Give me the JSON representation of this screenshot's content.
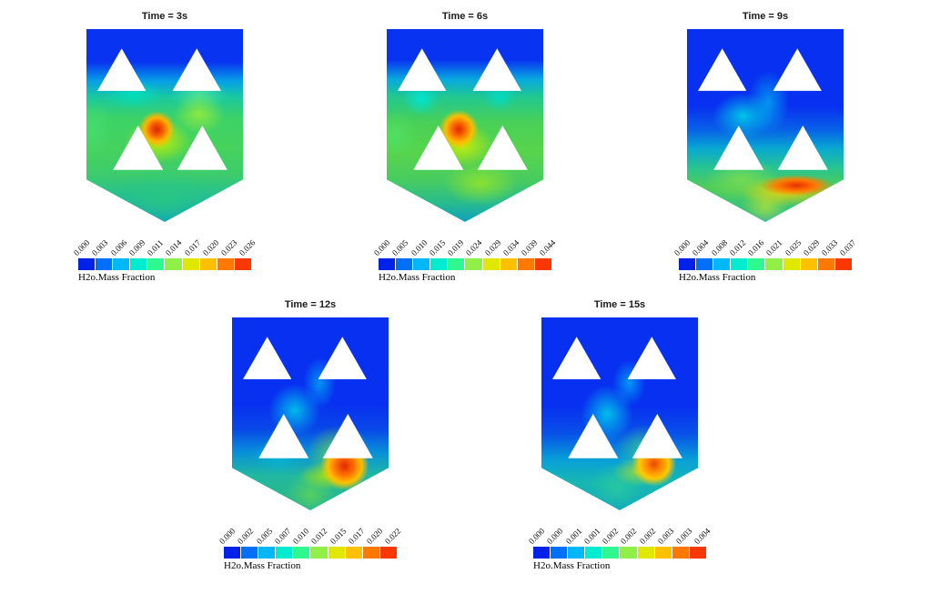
{
  "figure": {
    "colorbar_colors": [
      "#0022e8",
      "#0070f8",
      "#00b8f8",
      "#00ecd0",
      "#30f890",
      "#90f048",
      "#e0e800",
      "#ffc000",
      "#ff7800",
      "#f83800"
    ],
    "panels": [
      {
        "id": "3s",
        "title": "Time = 3s",
        "colorbar_label": "H2o.Mass Fraction",
        "ticks": [
          "0.000",
          "0.003",
          "0.006",
          "0.009",
          "0.011",
          "0.014",
          "0.017",
          "0.020",
          "0.023",
          "0.026"
        ]
      },
      {
        "id": "6s",
        "title": "Time = 6s",
        "colorbar_label": "H2o.Mass Fraction",
        "ticks": [
          "0.000",
          "0.005",
          "0.010",
          "0.015",
          "0.019",
          "0.024",
          "0.029",
          "0.034",
          "0.039",
          "0.044"
        ]
      },
      {
        "id": "9s",
        "title": "Time = 9s",
        "colorbar_label": "H2o.Mass Fraction",
        "ticks": [
          "0.000",
          "0.004",
          "0.008",
          "0.012",
          "0.016",
          "0.021",
          "0.025",
          "0.029",
          "0.033",
          "0.037"
        ]
      },
      {
        "id": "12s",
        "title": "Time = 12s",
        "colorbar_label": "H2o.Mass Fraction",
        "ticks": [
          "0.000",
          "0.002",
          "0.005",
          "0.007",
          "0.010",
          "0.012",
          "0.015",
          "0.017",
          "0.020",
          "0.022"
        ]
      },
      {
        "id": "15s",
        "title": "Time = 15s",
        "colorbar_label": "H2o.Mass Fraction",
        "ticks": [
          "0.000",
          "0.000",
          "0.001",
          "0.001",
          "0.002",
          "0.002",
          "0.002",
          "0.003",
          "0.003",
          "0.004"
        ]
      }
    ]
  },
  "chart_data": [
    {
      "type": "heatmap",
      "title": "Time = 3s",
      "field": "H2O mass fraction contour",
      "colorbar_label": "H2o.Mass Fraction",
      "legend_position": "bottom",
      "colorbar_ticks": [
        0.0,
        0.003,
        0.006,
        0.009,
        0.011,
        0.014,
        0.017,
        0.02,
        0.023,
        0.026
      ],
      "value_range": [
        0.0,
        0.026
      ],
      "colormap": "rainbow blue-to-red",
      "notes": "Pentagon-shaped domain with four white triangular baffles; red maximum spot between middle baffles, green mixing zone in lower half, blue (low) at top."
    },
    {
      "type": "heatmap",
      "title": "Time = 6s",
      "field": "H2O mass fraction contour",
      "colorbar_label": "H2o.Mass Fraction",
      "legend_position": "bottom",
      "colorbar_ticks": [
        0.0,
        0.005,
        0.01,
        0.015,
        0.019,
        0.024,
        0.029,
        0.034,
        0.039,
        0.044
      ],
      "value_range": [
        0.0,
        0.044
      ],
      "colormap": "rainbow blue-to-red",
      "notes": "Red maximum spot at center between middle baffles; cyan pockets under top baffles; green lower half; blue top."
    },
    {
      "type": "heatmap",
      "title": "Time = 9s",
      "field": "H2O mass fraction contour",
      "colorbar_label": "H2o.Mass Fraction",
      "legend_position": "bottom",
      "colorbar_ticks": [
        0.0,
        0.004,
        0.008,
        0.012,
        0.016,
        0.021,
        0.025,
        0.029,
        0.033,
        0.037
      ],
      "value_range": [
        0.0,
        0.037
      ],
      "colormap": "rainbow blue-to-red",
      "notes": "Mostly blue upper half with cyan swirl; orange-red streak along lower-right converging wall; green near bottom outlet."
    },
    {
      "type": "heatmap",
      "title": "Time = 12s",
      "field": "H2O mass fraction contour",
      "colorbar_label": "H2o.Mass Fraction",
      "legend_position": "bottom",
      "colorbar_ticks": [
        0.0,
        0.002,
        0.005,
        0.007,
        0.01,
        0.012,
        0.015,
        0.017,
        0.02,
        0.022
      ],
      "value_range": [
        0.0,
        0.022
      ],
      "colormap": "rainbow blue-to-red",
      "notes": "Predominantly blue; cyan plume through center; red hot spot at lower right beside middle-right baffle; green-yellow streak toward bottom vertex."
    },
    {
      "type": "heatmap",
      "title": "Time = 15s",
      "field": "H2O mass fraction contour",
      "colorbar_label": "H2o.Mass Fraction",
      "legend_position": "bottom",
      "colorbar_ticks": [
        0.0,
        0.0,
        0.001,
        0.001,
        0.002,
        0.002,
        0.002,
        0.003,
        0.003,
        0.004
      ],
      "value_range": [
        0.0,
        0.004
      ],
      "colormap": "rainbow blue-to-red",
      "notes": "Predominantly blue; cyan plume through center; small orange-red spot at lower right; teal-green streak toward bottom vertex."
    }
  ]
}
